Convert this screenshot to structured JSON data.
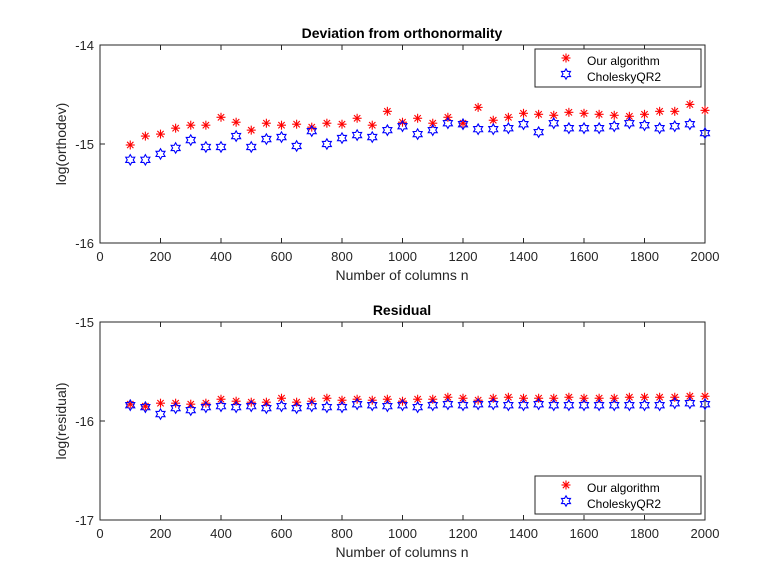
{
  "chart_data": [
    {
      "type": "scatter",
      "title": "Deviation from orthonormality",
      "xlabel": "Number of columns n",
      "ylabel": "log(orthodev)",
      "xlim": [
        0,
        2000
      ],
      "ylim": [
        -16,
        -14
      ],
      "xticks": [
        0,
        200,
        400,
        600,
        800,
        1000,
        1200,
        1400,
        1600,
        1800,
        2000
      ],
      "yticks": [
        -16,
        -15,
        -14
      ],
      "legend_position": "top-right",
      "x": [
        100,
        150,
        200,
        250,
        300,
        350,
        400,
        450,
        500,
        550,
        600,
        650,
        700,
        750,
        800,
        850,
        900,
        950,
        1000,
        1050,
        1100,
        1150,
        1200,
        1250,
        1300,
        1350,
        1400,
        1450,
        1500,
        1550,
        1600,
        1650,
        1700,
        1750,
        1800,
        1850,
        1900,
        1950,
        2000
      ],
      "series": [
        {
          "name": "Our algorithm",
          "marker": "asterisk",
          "color": "#ff0000",
          "values": [
            -15.01,
            -14.92,
            -14.9,
            -14.84,
            -14.81,
            -14.81,
            -14.73,
            -14.78,
            -14.86,
            -14.79,
            -14.81,
            -14.8,
            -14.83,
            -14.79,
            -14.8,
            -14.74,
            -14.81,
            -14.67,
            -14.78,
            -14.74,
            -14.79,
            -14.73,
            -14.79,
            -14.63,
            -14.76,
            -14.73,
            -14.69,
            -14.7,
            -14.71,
            -14.68,
            -14.69,
            -14.7,
            -14.71,
            -14.72,
            -14.7,
            -14.67,
            -14.67,
            -14.6,
            -14.66
          ]
        },
        {
          "name": "CholeskyQR2",
          "marker": "hexagram",
          "color": "#0000ff",
          "values": [
            -15.16,
            -15.16,
            -15.1,
            -15.04,
            -14.96,
            -15.03,
            -15.03,
            -14.92,
            -15.03,
            -14.95,
            -14.93,
            -15.02,
            -14.87,
            -15.0,
            -14.94,
            -14.91,
            -14.93,
            -14.86,
            -14.82,
            -14.9,
            -14.86,
            -14.79,
            -14.8,
            -14.85,
            -14.85,
            -14.84,
            -14.8,
            -14.88,
            -14.79,
            -14.84,
            -14.84,
            -14.84,
            -14.82,
            -14.79,
            -14.81,
            -14.84,
            -14.82,
            -14.8,
            -14.89
          ]
        }
      ]
    },
    {
      "type": "scatter",
      "title": "Residual",
      "xlabel": "Number of columns n",
      "ylabel": "log(residual)",
      "xlim": [
        0,
        2000
      ],
      "ylim": [
        -17,
        -15
      ],
      "xticks": [
        0,
        200,
        400,
        600,
        800,
        1000,
        1200,
        1400,
        1600,
        1800,
        2000
      ],
      "yticks": [
        -17,
        -16,
        -15
      ],
      "legend_position": "bottom-right",
      "x": [
        100,
        150,
        200,
        250,
        300,
        350,
        400,
        450,
        500,
        550,
        600,
        650,
        700,
        750,
        800,
        850,
        900,
        950,
        1000,
        1050,
        1100,
        1150,
        1200,
        1250,
        1300,
        1350,
        1400,
        1450,
        1500,
        1550,
        1600,
        1650,
        1700,
        1750,
        1800,
        1850,
        1900,
        1950,
        2000
      ],
      "series": [
        {
          "name": "Our algorithm",
          "marker": "asterisk",
          "color": "#ff0000",
          "values": [
            -15.83,
            -15.85,
            -15.82,
            -15.82,
            -15.83,
            -15.82,
            -15.78,
            -15.8,
            -15.81,
            -15.81,
            -15.77,
            -15.81,
            -15.8,
            -15.77,
            -15.79,
            -15.78,
            -15.79,
            -15.78,
            -15.8,
            -15.78,
            -15.78,
            -15.76,
            -15.77,
            -15.79,
            -15.77,
            -15.76,
            -15.77,
            -15.77,
            -15.77,
            -15.76,
            -15.77,
            -15.77,
            -15.77,
            -15.76,
            -15.76,
            -15.76,
            -15.76,
            -15.75,
            -15.75
          ]
        },
        {
          "name": "CholeskyQR2",
          "marker": "hexagram",
          "color": "#0000ff",
          "values": [
            -15.84,
            -15.86,
            -15.93,
            -15.87,
            -15.89,
            -15.86,
            -15.85,
            -15.86,
            -15.85,
            -15.87,
            -15.85,
            -15.87,
            -15.85,
            -15.86,
            -15.86,
            -15.83,
            -15.84,
            -15.85,
            -15.84,
            -15.86,
            -15.84,
            -15.83,
            -15.84,
            -15.83,
            -15.83,
            -15.84,
            -15.84,
            -15.83,
            -15.84,
            -15.84,
            -15.84,
            -15.84,
            -15.84,
            -15.84,
            -15.84,
            -15.84,
            -15.82,
            -15.82,
            -15.83
          ]
        }
      ]
    }
  ]
}
